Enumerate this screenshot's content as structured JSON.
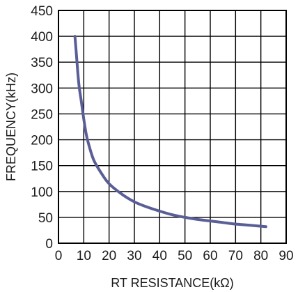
{
  "chart_data": {
    "type": "line",
    "xlabel": "RT RESISTANCE(kΩ)",
    "ylabel": "FREQUENCY(kHz)",
    "xlim": [
      0,
      90
    ],
    "ylim": [
      0,
      450
    ],
    "xticks": [
      0,
      10,
      20,
      30,
      40,
      50,
      60,
      70,
      80,
      90
    ],
    "yticks": [
      0,
      50,
      100,
      150,
      200,
      250,
      300,
      350,
      400,
      450
    ],
    "grid": true,
    "series": [
      {
        "color": "#5a5e96",
        "x": [
          6.5,
          7,
          8,
          9,
          10,
          11,
          12,
          14,
          17,
          20,
          25,
          30,
          35,
          40,
          45,
          50,
          55,
          60,
          65,
          70,
          75,
          82
        ],
        "y": [
          400,
          370,
          310,
          275,
          240,
          210,
          190,
          160,
          135,
          115,
          95,
          80,
          70,
          62,
          55,
          50,
          46,
          43,
          40,
          37,
          35,
          32
        ]
      }
    ]
  },
  "colors": {
    "line": "#5a5e96",
    "grid": "#000000",
    "frame": "#000000"
  }
}
